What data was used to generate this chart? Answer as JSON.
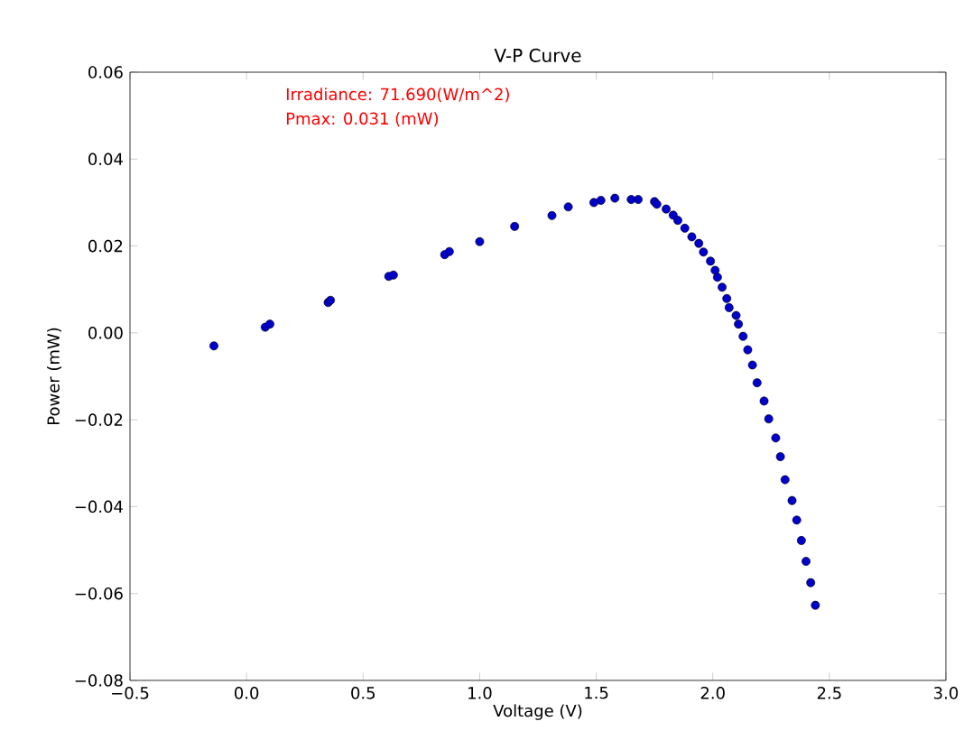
{
  "chart_data": {
    "type": "scatter",
    "title": "V-P Curve",
    "xlabel": "Voltage (V)",
    "ylabel": "Power (mW)",
    "annotations": [
      "Irradiance: 71.690(W/m^2)",
      "Pmax: 0.031 (mW)"
    ],
    "xlim": [
      -0.5,
      3.0
    ],
    "ylim": [
      -0.08,
      0.06
    ],
    "xticks": [
      {
        "value": -0.5,
        "label": "−0.5"
      },
      {
        "value": 0,
        "label": "0.0"
      },
      {
        "value": 0.5,
        "label": "0.5"
      },
      {
        "value": 1.0,
        "label": "1.0"
      },
      {
        "value": 1.5,
        "label": "1.5"
      },
      {
        "value": 2.0,
        "label": "2.0"
      },
      {
        "value": 2.5,
        "label": "2.5"
      },
      {
        "value": 3.0,
        "label": "3.0"
      }
    ],
    "yticks": [
      {
        "value": -0.08,
        "label": "−0.08"
      },
      {
        "value": -0.06,
        "label": "−0.06"
      },
      {
        "value": -0.04,
        "label": "−0.04"
      },
      {
        "value": -0.02,
        "label": "−0.02"
      },
      {
        "value": 0,
        "label": "0.00"
      },
      {
        "value": 0.02,
        "label": "0.02"
      },
      {
        "value": 0.04,
        "label": "0.04"
      },
      {
        "value": 0.06,
        "label": "0.06"
      }
    ],
    "marker": "circle",
    "grid": false,
    "series": [
      {
        "color": "#0000cc",
        "x": [
          -0.14,
          0.08,
          0.1,
          0.35,
          0.36,
          0.61,
          0.63,
          0.85,
          0.87,
          1.0,
          1.15,
          1.31,
          1.38,
          1.49,
          1.52,
          1.58,
          1.65,
          1.68,
          1.75,
          1.76,
          1.8,
          1.83,
          1.85,
          1.88,
          1.91,
          1.94,
          1.96,
          1.99,
          2.01,
          2.02,
          2.04,
          2.06,
          2.07,
          2.1,
          2.11,
          2.13,
          2.15,
          2.17,
          2.19,
          2.22,
          2.24,
          2.27,
          2.29,
          2.31,
          2.34,
          2.36,
          2.38,
          2.4,
          2.42,
          2.44
        ],
        "values": [
          -0.003,
          0.0013,
          0.002,
          0.007,
          0.0075,
          0.013,
          0.0133,
          0.018,
          0.0187,
          0.021,
          0.0245,
          0.027,
          0.029,
          0.03,
          0.0305,
          0.031,
          0.0307,
          0.0307,
          0.0302,
          0.0296,
          0.0285,
          0.0271,
          0.0259,
          0.0241,
          0.0221,
          0.0206,
          0.0186,
          0.0165,
          0.0144,
          0.0128,
          0.0105,
          0.0079,
          0.0058,
          0.004,
          0.002,
          -0.0008,
          -0.0039,
          -0.0074,
          -0.0115,
          -0.0157,
          -0.0198,
          -0.0242,
          -0.0285,
          -0.0338,
          -0.0386,
          -0.0431,
          -0.0478,
          -0.0526,
          -0.0575,
          -0.0627
        ]
      }
    ]
  }
}
